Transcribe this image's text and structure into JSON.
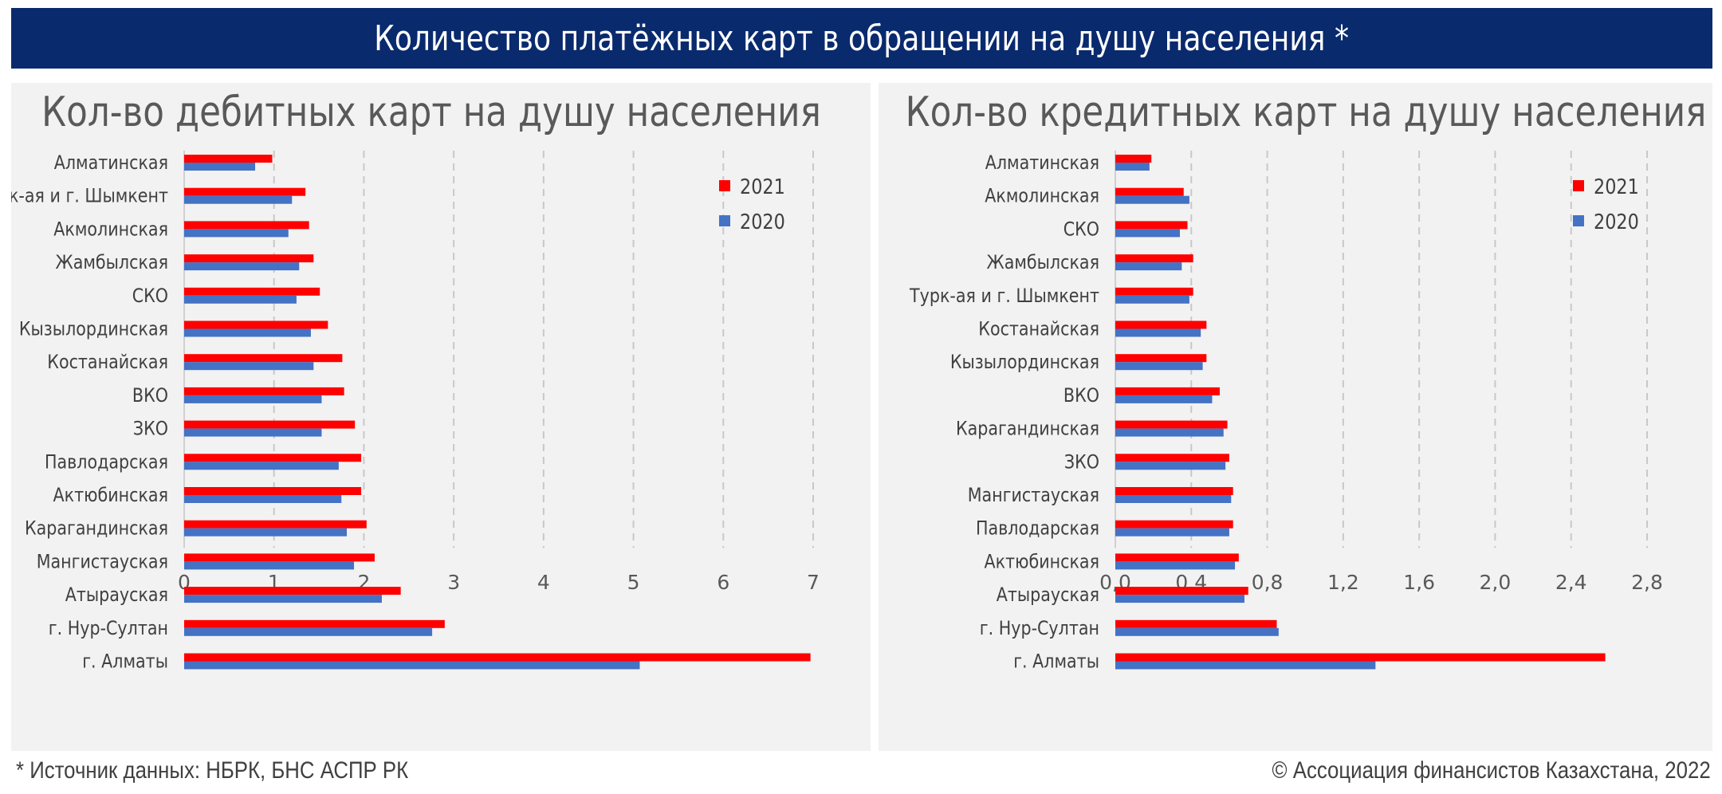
{
  "header": {
    "title": "Количество платёжных карт в обращении на душу населения *"
  },
  "footer": {
    "source": "* Источник данных: НБРК, БНС АСПР РК",
    "copyright": "© Ассоциация финансистов Казахстана, 2022"
  },
  "colors": {
    "series_2021": "#ff0000",
    "series_2020": "#4472c4",
    "banner": "#0a2a6e",
    "panel_bg": "#f2f2f2"
  },
  "chart_data": [
    {
      "type": "bar",
      "orientation": "horizontal",
      "title": "Кол-во дебитных карт на душу населения",
      "xlabel": "",
      "ylabel": "",
      "xlim": [
        0,
        7
      ],
      "ticks": [
        0,
        1,
        2,
        3,
        4,
        5,
        6,
        7
      ],
      "tick_labels": [
        "0",
        "1",
        "2",
        "3",
        "4",
        "5",
        "6",
        "7"
      ],
      "grid": "vertical dashed",
      "legend_position": "top-right",
      "categories": [
        "Алматинская",
        "Турк-ая и г. Шымкент",
        "Акмолинская",
        "Жамбылская",
        "СКО",
        "Кызылординская",
        "Костанайская",
        "ВКО",
        "ЗКО",
        "Павлодарская",
        "Актюбинская",
        "Карагандинская",
        "Мангистауская",
        "Атырауская",
        "г. Нур-Султан",
        "г. Алматы"
      ],
      "series": [
        {
          "name": "2021",
          "values": [
            0.98,
            1.35,
            1.39,
            1.44,
            1.51,
            1.6,
            1.76,
            1.78,
            1.9,
            1.97,
            1.97,
            2.03,
            2.12,
            2.41,
            2.9,
            6.97
          ]
        },
        {
          "name": "2020",
          "values": [
            0.79,
            1.2,
            1.16,
            1.28,
            1.25,
            1.41,
            1.44,
            1.53,
            1.53,
            1.72,
            1.75,
            1.81,
            1.89,
            2.2,
            2.76,
            5.07
          ]
        }
      ]
    },
    {
      "type": "bar",
      "orientation": "horizontal",
      "title": "Кол-во кредитных карт на душу населения",
      "xlabel": "",
      "ylabel": "",
      "xlim": [
        0,
        2.8
      ],
      "ticks": [
        0,
        0.4,
        0.8,
        1.2,
        1.6,
        2.0,
        2.4,
        2.8
      ],
      "tick_labels": [
        "0,0",
        "0,4",
        "0,8",
        "1,2",
        "1,6",
        "2,0",
        "2,4",
        "2,8"
      ],
      "grid": "vertical dashed",
      "legend_position": "top-right",
      "categories": [
        "Алматинская",
        "Акмолинская",
        "СКО",
        "Жамбылская",
        "Турк-ая и г. Шымкент",
        "Костанайская",
        "Кызылординская",
        "ВКО",
        "Карагандинская",
        "ЗКО",
        "Мангистауская",
        "Павлодарская",
        "Актюбинская",
        "Атырауская",
        "г. Нур-Султан",
        "г. Алматы"
      ],
      "series": [
        {
          "name": "2021",
          "values": [
            0.19,
            0.36,
            0.38,
            0.41,
            0.41,
            0.48,
            0.48,
            0.55,
            0.59,
            0.6,
            0.62,
            0.62,
            0.65,
            0.7,
            0.85,
            2.58
          ]
        },
        {
          "name": "2020",
          "values": [
            0.18,
            0.39,
            0.34,
            0.35,
            0.39,
            0.45,
            0.46,
            0.51,
            0.57,
            0.58,
            0.61,
            0.6,
            0.63,
            0.68,
            0.86,
            1.37
          ]
        }
      ]
    }
  ]
}
